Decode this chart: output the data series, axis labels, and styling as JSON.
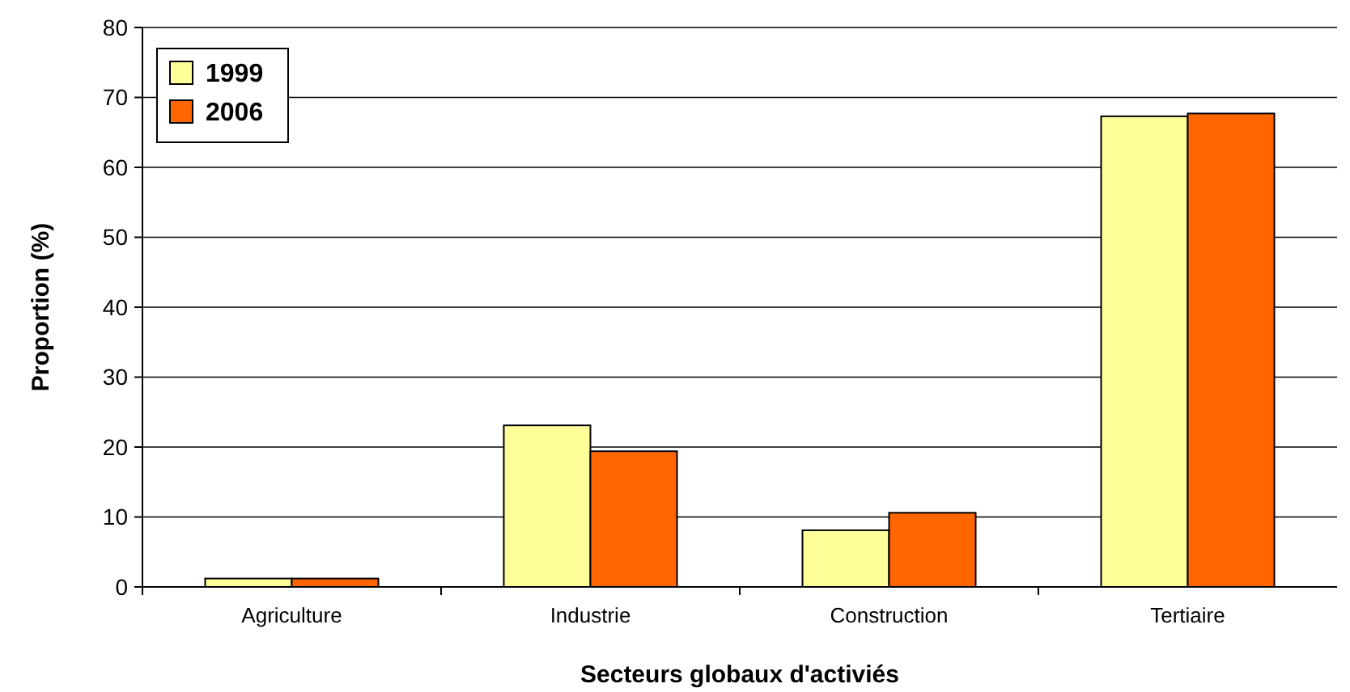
{
  "chart_data": {
    "type": "bar",
    "xlabel": "Secteurs globaux d'activiés",
    "ylabel": "Proportion (%)",
    "categories": [
      "Agriculture",
      "Industrie",
      "Construction",
      "Tertiaire"
    ],
    "series": [
      {
        "name": "1999",
        "color": "#ffff99",
        "values": [
          1.2,
          23.1,
          8.1,
          67.3
        ]
      },
      {
        "name": "2006",
        "color": "#ff6600",
        "values": [
          1.2,
          19.4,
          10.6,
          67.7
        ]
      }
    ],
    "ylim": [
      0,
      80
    ],
    "yticks": [
      0,
      10,
      20,
      30,
      40,
      50,
      60,
      70,
      80
    ],
    "grid": "y",
    "legend": "top left"
  }
}
